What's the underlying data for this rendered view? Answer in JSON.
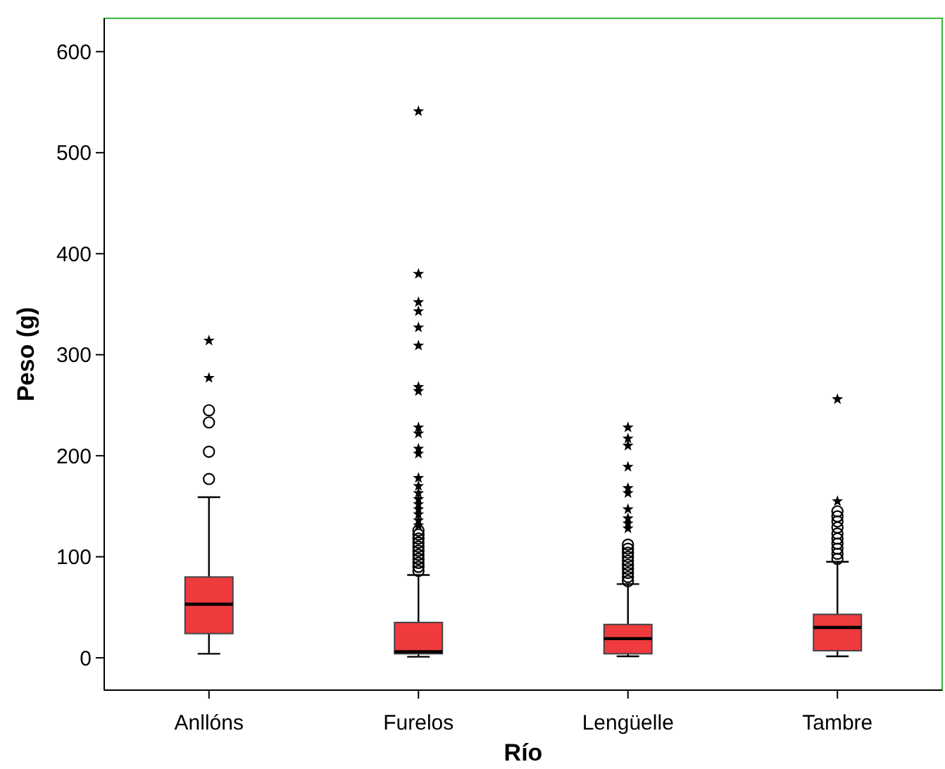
{
  "chart_data": {
    "type": "box",
    "xlabel": "Río",
    "ylabel": "Peso (g)",
    "categories": [
      "Anllóns",
      "Furelos",
      "Lengüelle",
      "Tambre"
    ],
    "color": "#ef3a3e",
    "ylim": [
      -32,
      633
    ],
    "yticks": [
      0,
      100,
      200,
      300,
      400,
      500,
      600
    ],
    "grid": false,
    "boxes": [
      {
        "low": 4,
        "q1": 24,
        "median": 53,
        "q3": 80,
        "high": 159,
        "outliers": [
          177,
          204,
          233,
          245,
          277,
          314
        ]
      },
      {
        "low": 1,
        "q1": 4,
        "median": 6,
        "q3": 35,
        "high": 82,
        "outliers": [
          86,
          90,
          94,
          98,
          102,
          106,
          110,
          114,
          118,
          122,
          126,
          131,
          136,
          142,
          147,
          152,
          157,
          163,
          170,
          178,
          202,
          207,
          222,
          228,
          264,
          268,
          309,
          327,
          343,
          352,
          380,
          541
        ]
      },
      {
        "low": 1.5,
        "q1": 4,
        "median": 19,
        "q3": 33,
        "high": 73,
        "outliers": [
          76,
          80,
          84,
          88,
          92,
          96,
          100,
          104,
          108,
          112,
          128,
          133,
          138,
          147,
          163,
          168,
          189,
          210,
          217,
          228
        ]
      },
      {
        "low": 1.5,
        "q1": 7,
        "median": 30,
        "q3": 43,
        "high": 95,
        "outliers": [
          98,
          103,
          108,
          113,
          118,
          123,
          129,
          135,
          140,
          145,
          155,
          256
        ]
      }
    ]
  }
}
